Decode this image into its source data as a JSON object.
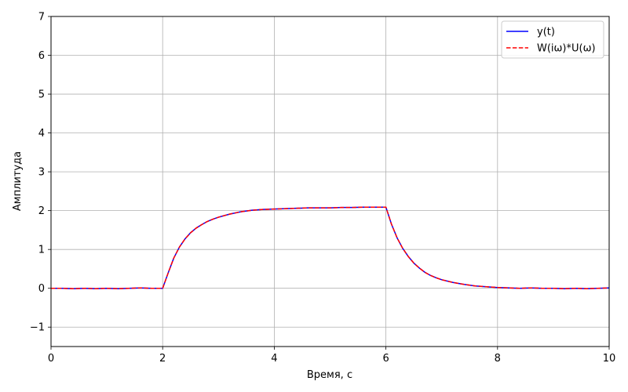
{
  "chart_data": {
    "type": "line",
    "xlabel": "Время, с",
    "ylabel": "Амплитуда",
    "xlim": [
      0,
      10
    ],
    "ylim": [
      -1.5,
      7
    ],
    "xticks": [
      0,
      2,
      4,
      6,
      8,
      10
    ],
    "yticks": [
      -1,
      0,
      1,
      2,
      3,
      4,
      5,
      6,
      7
    ],
    "grid": true,
    "legend_position": "top-right",
    "x": [
      0,
      0.2,
      0.4,
      0.6,
      0.8,
      1.0,
      1.2,
      1.4,
      1.6,
      1.8,
      2.0,
      2.1,
      2.2,
      2.3,
      2.4,
      2.5,
      2.6,
      2.7,
      2.8,
      2.9,
      3.0,
      3.2,
      3.4,
      3.6,
      3.8,
      4.0,
      4.2,
      4.4,
      4.6,
      4.8,
      5.0,
      5.2,
      5.4,
      5.6,
      5.8,
      6.0,
      6.1,
      6.2,
      6.3,
      6.4,
      6.5,
      6.6,
      6.7,
      6.8,
      6.9,
      7.0,
      7.2,
      7.4,
      7.6,
      7.8,
      8.0,
      8.2,
      8.4,
      8.6,
      8.8,
      9.0,
      9.2,
      9.4,
      9.6,
      9.8,
      10.0
    ],
    "series": [
      {
        "name": "y(t)",
        "color": "#0000ff",
        "style": "solid",
        "values": [
          0.0,
          0.0,
          -0.01,
          0.0,
          -0.01,
          0.0,
          -0.01,
          0.0,
          0.01,
          0.0,
          0.0,
          0.4,
          0.78,
          1.06,
          1.27,
          1.43,
          1.55,
          1.64,
          1.72,
          1.78,
          1.83,
          1.91,
          1.97,
          2.01,
          2.03,
          2.04,
          2.05,
          2.06,
          2.07,
          2.07,
          2.07,
          2.08,
          2.08,
          2.09,
          2.09,
          2.09,
          1.65,
          1.3,
          1.03,
          0.82,
          0.65,
          0.52,
          0.41,
          0.33,
          0.27,
          0.22,
          0.15,
          0.1,
          0.06,
          0.04,
          0.02,
          0.01,
          0.0,
          0.01,
          0.0,
          0.0,
          -0.01,
          0.0,
          -0.01,
          0.0,
          0.01
        ]
      },
      {
        "name": "W(iω)*U(ω)",
        "color": "#ff0000",
        "style": "dashed",
        "values": [
          0.0,
          0.0,
          -0.01,
          0.0,
          -0.01,
          0.0,
          -0.01,
          0.0,
          0.01,
          0.0,
          0.0,
          0.4,
          0.78,
          1.06,
          1.27,
          1.43,
          1.55,
          1.64,
          1.72,
          1.78,
          1.83,
          1.91,
          1.97,
          2.01,
          2.03,
          2.04,
          2.05,
          2.06,
          2.07,
          2.07,
          2.07,
          2.08,
          2.08,
          2.09,
          2.09,
          2.09,
          1.65,
          1.3,
          1.03,
          0.82,
          0.65,
          0.52,
          0.41,
          0.33,
          0.27,
          0.22,
          0.15,
          0.1,
          0.06,
          0.04,
          0.02,
          0.01,
          0.0,
          0.01,
          0.0,
          0.0,
          -0.01,
          0.0,
          -0.01,
          0.0,
          0.01
        ]
      }
    ]
  }
}
